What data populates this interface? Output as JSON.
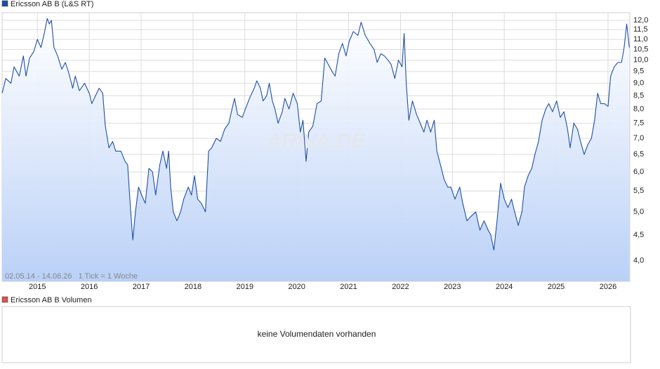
{
  "chart_data": {
    "type": "line",
    "annotation": "02.05.14 - 14.06.26   1 Tick = 1 Woche",
    "watermark": "ARIVA.DE",
    "log_y": true,
    "grid": true,
    "fill_color": "#b9d0f7",
    "xlim": [
      2014.32,
      2026.42
    ],
    "xticks": [
      2015,
      2016,
      2017,
      2018,
      2019,
      2020,
      2021,
      2022,
      2023,
      2024,
      2025,
      2026
    ],
    "ylim": [
      3.64,
      12.43
    ],
    "yticks": [
      {
        "value": 4,
        "label": "4,0"
      },
      {
        "value": 4.5,
        "label": "4,5"
      },
      {
        "value": 5,
        "label": "5,0"
      },
      {
        "value": 5.5,
        "label": "5,5"
      },
      {
        "value": 6,
        "label": "6,0"
      },
      {
        "value": 6.5,
        "label": "6,5"
      },
      {
        "value": 7,
        "label": "7,0"
      },
      {
        "value": 7.5,
        "label": "7,5"
      },
      {
        "value": 8,
        "label": "8,0"
      },
      {
        "value": 8.5,
        "label": "8,5"
      },
      {
        "value": 9,
        "label": "9,0"
      },
      {
        "value": 9.5,
        "label": "9,5"
      },
      {
        "value": 10,
        "label": "10,0"
      },
      {
        "value": 10.5,
        "label": "10,5"
      },
      {
        "value": 11,
        "label": "11,0"
      },
      {
        "value": 11.5,
        "label": "11,5"
      },
      {
        "value": 12,
        "label": "12,0"
      }
    ],
    "x": [
      2014.32,
      2014.39,
      2014.49,
      2014.55,
      2014.65,
      2014.73,
      2014.78,
      2014.85,
      2014.93,
      2015.0,
      2015.07,
      2015.14,
      2015.19,
      2015.23,
      2015.27,
      2015.32,
      2015.39,
      2015.47,
      2015.54,
      2015.61,
      2015.68,
      2015.73,
      2015.81,
      2015.91,
      2016.0,
      2016.05,
      2016.12,
      2016.19,
      2016.26,
      2016.31,
      2016.38,
      2016.45,
      2016.51,
      2016.61,
      2016.69,
      2016.74,
      2016.8,
      2016.84,
      2016.89,
      2016.95,
      2017.01,
      2017.08,
      2017.15,
      2017.22,
      2017.28,
      2017.36,
      2017.42,
      2017.49,
      2017.53,
      2017.57,
      2017.62,
      2017.69,
      2017.76,
      2017.82,
      2017.91,
      2017.97,
      2018.03,
      2018.09,
      2018.16,
      2018.24,
      2018.3,
      2018.36,
      2018.45,
      2018.53,
      2018.61,
      2018.69,
      2018.74,
      2018.8,
      2018.86,
      2018.95,
      2019.01,
      2019.09,
      2019.18,
      2019.23,
      2019.3,
      2019.35,
      2019.42,
      2019.47,
      2019.53,
      2019.58,
      2019.64,
      2019.72,
      2019.77,
      2019.85,
      2019.93,
      2020.01,
      2020.07,
      2020.12,
      2020.18,
      2020.23,
      2020.31,
      2020.39,
      2020.47,
      2020.54,
      2020.61,
      2020.68,
      2020.74,
      2020.81,
      2020.88,
      2020.95,
      2021.01,
      2021.09,
      2021.18,
      2021.24,
      2021.32,
      2021.41,
      2021.49,
      2021.55,
      2021.62,
      2021.69,
      2021.76,
      2021.82,
      2021.89,
      2021.96,
      2022.03,
      2022.07,
      2022.11,
      2022.16,
      2022.23,
      2022.31,
      2022.38,
      2022.45,
      2022.51,
      2022.58,
      2022.65,
      2022.7,
      2022.77,
      2022.84,
      2022.91,
      2022.97,
      2023.05,
      2023.14,
      2023.2,
      2023.28,
      2023.36,
      2023.45,
      2023.53,
      2023.61,
      2023.69,
      2023.74,
      2023.8,
      2023.86,
      2023.93,
      2024.0,
      2024.07,
      2024.14,
      2024.2,
      2024.27,
      2024.34,
      2024.39,
      2024.46,
      2024.53,
      2024.59,
      2024.66,
      2024.73,
      2024.8,
      2024.86,
      2024.93,
      2025.01,
      2025.08,
      2025.15,
      2025.22,
      2025.27,
      2025.34,
      2025.41,
      2025.47,
      2025.54,
      2025.61,
      2025.68,
      2025.74,
      2025.8,
      2025.86,
      2025.93,
      2026.0,
      2026.05,
      2026.12,
      2026.19,
      2026.26,
      2026.31,
      2026.36,
      2026.41
    ],
    "series": [
      {
        "name": "Ericsson AB B (L&S RT)",
        "color": "#1f4fa6",
        "values": [
          8.6,
          9.2,
          9.0,
          9.7,
          9.3,
          10.2,
          9.3,
          10.1,
          10.4,
          11.0,
          10.6,
          11.4,
          12.1,
          11.8,
          12.0,
          10.6,
          10.2,
          9.6,
          9.9,
          9.4,
          8.8,
          9.3,
          8.7,
          9.0,
          8.6,
          8.2,
          8.5,
          8.8,
          8.6,
          7.4,
          6.7,
          6.9,
          6.6,
          6.6,
          6.3,
          6.2,
          5.0,
          4.4,
          5.0,
          5.6,
          5.4,
          5.2,
          6.1,
          6.0,
          5.4,
          6.2,
          6.6,
          6.1,
          6.6,
          5.6,
          5.0,
          4.8,
          5.0,
          5.3,
          5.6,
          5.4,
          5.9,
          5.3,
          5.2,
          5.0,
          6.6,
          6.7,
          7.0,
          6.9,
          7.3,
          7.5,
          7.9,
          8.4,
          7.8,
          7.7,
          8.0,
          8.4,
          8.8,
          9.1,
          8.8,
          8.3,
          8.5,
          9.0,
          8.3,
          8.0,
          7.5,
          7.9,
          8.4,
          8.0,
          8.6,
          8.2,
          7.2,
          7.6,
          6.3,
          7.2,
          7.4,
          8.2,
          8.3,
          10.1,
          9.8,
          9.5,
          9.3,
          10.3,
          10.8,
          10.2,
          10.9,
          11.4,
          11.2,
          11.9,
          11.2,
          10.8,
          10.5,
          9.9,
          10.3,
          10.2,
          10.0,
          9.8,
          9.2,
          10.0,
          9.7,
          11.3,
          9.0,
          7.6,
          8.3,
          7.8,
          7.5,
          7.2,
          7.6,
          7.2,
          7.6,
          6.6,
          6.2,
          5.8,
          5.6,
          5.6,
          5.3,
          5.6,
          5.2,
          4.8,
          4.9,
          5.0,
          4.6,
          4.8,
          4.6,
          4.5,
          4.2,
          4.8,
          5.7,
          5.3,
          5.1,
          5.3,
          5.0,
          4.7,
          5.0,
          5.6,
          5.9,
          6.1,
          6.5,
          6.9,
          7.6,
          8.0,
          8.2,
          7.9,
          8.3,
          7.7,
          7.9,
          7.3,
          6.7,
          7.5,
          7.3,
          6.9,
          6.5,
          6.8,
          7.0,
          7.6,
          8.6,
          8.2,
          8.2,
          8.1,
          9.3,
          9.7,
          9.9,
          9.9,
          10.6,
          11.8,
          10.6
        ]
      }
    ],
    "volume_panel": {
      "legend": "Ericsson AB B Volumen",
      "color": "#d9534f",
      "message": "keine Volumendaten vorhanden"
    }
  }
}
